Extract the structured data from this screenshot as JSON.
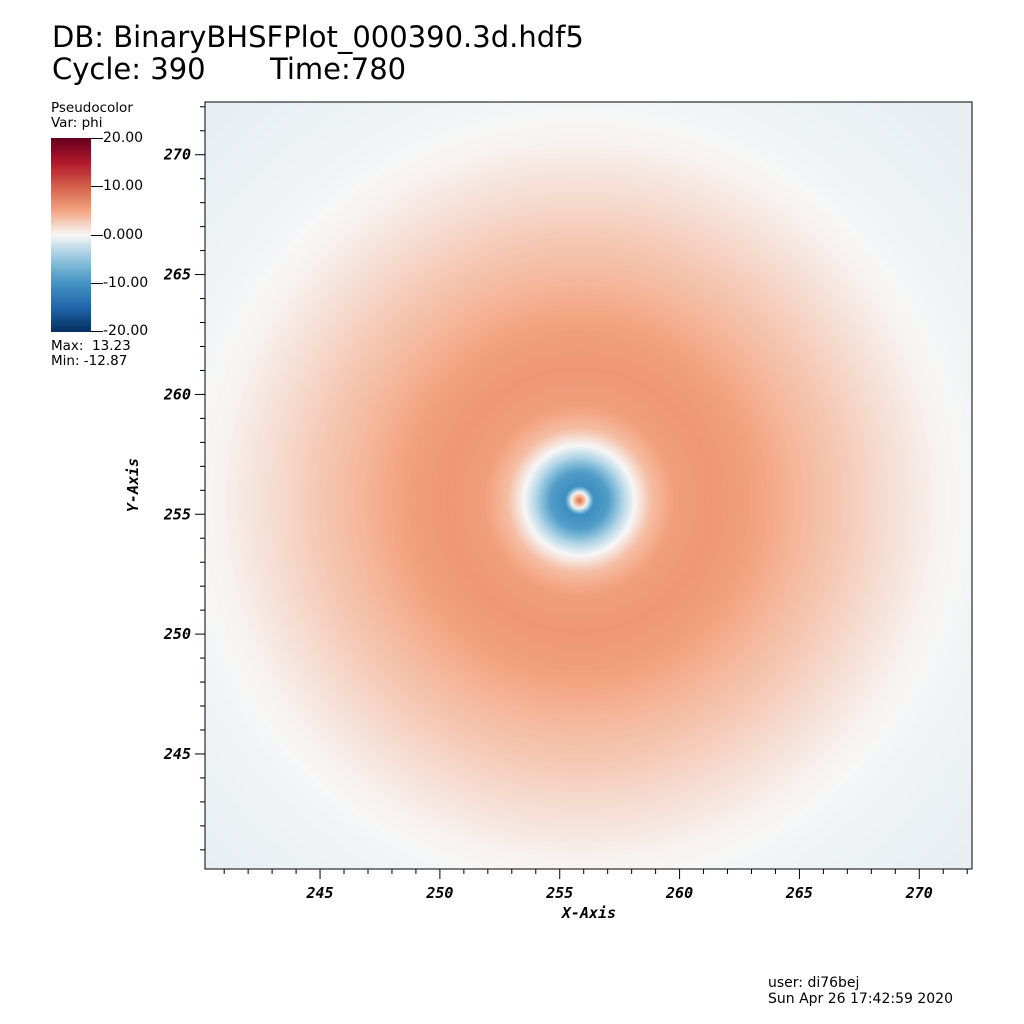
{
  "header": {
    "db_label": "DB: BinaryBHSFPlot_000390.3d.hdf5",
    "cycle_label": "Cycle: 390",
    "time_label": "Time:780"
  },
  "legend": {
    "plot_type": "Pseudocolor",
    "var_label": "Var: phi",
    "tick_labels": [
      "20.00",
      "10.00",
      "0.000",
      "-10.00",
      "-20.00"
    ],
    "tick_values": [
      20,
      10,
      0,
      -10,
      -20
    ],
    "range": [
      -20,
      20
    ],
    "max_label": "Max:  13.23",
    "min_label": "Min: -12.87",
    "colormap": [
      "#053061",
      "#2166ac",
      "#4393c3",
      "#92c5de",
      "#f7f7f7",
      "#f4a582",
      "#d6604d",
      "#b2182b",
      "#67001f"
    ]
  },
  "chart_data": {
    "type": "heatmap",
    "xlabel": "X-Axis",
    "ylabel": "Y-Axis",
    "xlim": [
      240.2,
      272.2
    ],
    "ylim": [
      240.2,
      272.2
    ],
    "x_ticks": [
      245,
      250,
      255,
      260,
      265,
      270
    ],
    "y_ticks": [
      245,
      250,
      255,
      260,
      265,
      270
    ],
    "x_tick_labels": [
      "245",
      "250",
      "255",
      "260",
      "265",
      "270"
    ],
    "y_tick_labels": [
      "245",
      "250",
      "255",
      "260",
      "265",
      "270"
    ],
    "field": {
      "center": [
        255.8,
        255.6
      ],
      "max": 13.23,
      "min": -12.87,
      "profile_radius": [
        0,
        0.3,
        0.6,
        1.2,
        1.8,
        2.3,
        3,
        4,
        5.5,
        7,
        9,
        11,
        13,
        15,
        17,
        20,
        22
      ],
      "profile_phi": [
        9,
        1,
        -10.5,
        -9,
        -3.5,
        0,
        3.5,
        5.5,
        6,
        5.5,
        4,
        2.8,
        1.5,
        0.3,
        -0.3,
        -0.6,
        -0.8
      ]
    }
  },
  "footer": {
    "user": "user: di76bej",
    "date": "Sun Apr 26 17:42:59 2020"
  }
}
